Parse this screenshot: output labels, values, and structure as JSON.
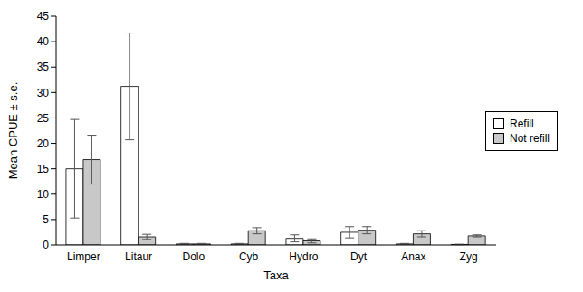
{
  "chart_data": {
    "type": "bar",
    "x_label": "Taxa",
    "y_label": "Mean CPUE ± s.e.",
    "categories": [
      "Limper",
      "Litaur",
      "Dolo",
      "Cyb",
      "Hydro",
      "Dyt",
      "Anax",
      "Zyg"
    ],
    "series": [
      {
        "name": "Refill",
        "color": "#ffffff",
        "values": [
          15.0,
          31.2,
          0.2,
          0.2,
          1.3,
          2.5,
          0.2,
          0.1
        ],
        "errors": [
          9.7,
          10.5,
          0.1,
          0.1,
          0.7,
          1.1,
          0.1,
          0.05
        ]
      },
      {
        "name": "Not refill",
        "color": "#c8c8c8",
        "values": [
          16.8,
          1.6,
          0.2,
          2.8,
          0.8,
          2.9,
          2.2,
          1.8
        ],
        "errors": [
          4.8,
          0.5,
          0.1,
          0.6,
          0.4,
          0.7,
          0.6,
          0.2
        ]
      }
    ],
    "ylim": [
      0,
      45
    ],
    "yticks": [
      0,
      5,
      10,
      15,
      20,
      25,
      30,
      35,
      40,
      45
    ],
    "legend": "upper right",
    "grid": false
  }
}
